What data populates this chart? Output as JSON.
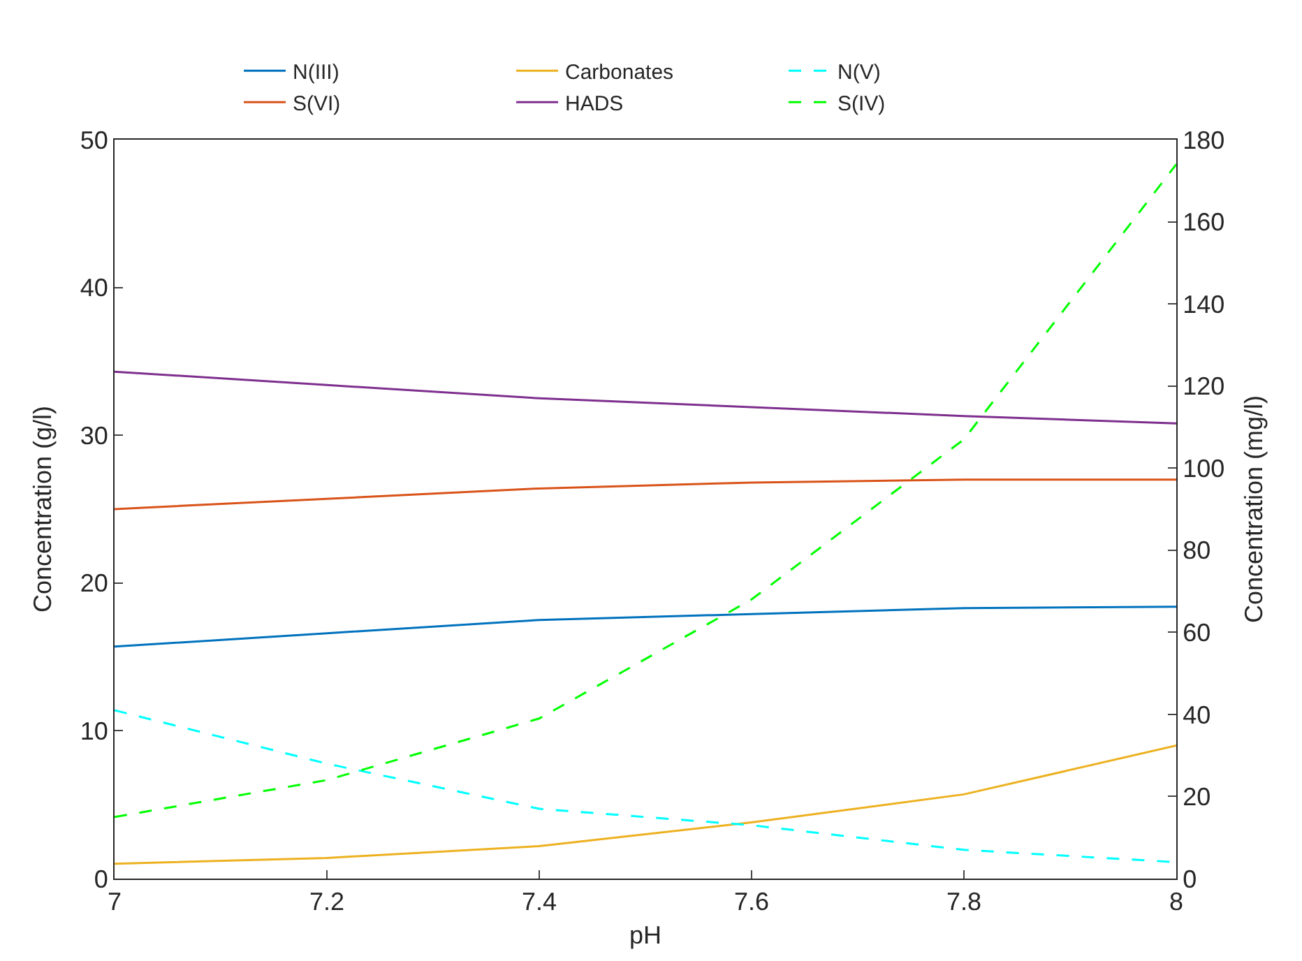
{
  "chart_data": {
    "type": "line",
    "xlabel": "pH",
    "ylabel": "Concentration (g/l)",
    "y2label": "Concentration (mg/l)",
    "x": [
      7,
      7.2,
      7.4,
      7.6,
      7.8,
      8
    ],
    "xlim": [
      7,
      8
    ],
    "xticks": [
      7,
      7.2,
      7.4,
      7.6,
      7.8,
      8
    ],
    "ylim": [
      0,
      50
    ],
    "yticks": [
      0,
      10,
      20,
      30,
      40,
      50
    ],
    "y2lim": [
      0,
      180
    ],
    "y2ticks": [
      0,
      20,
      40,
      60,
      80,
      100,
      120,
      140,
      160,
      180
    ],
    "legend": "top",
    "marker": "none",
    "series": [
      {
        "name": "N(III)",
        "color": "#0072bd",
        "values": [
          15.7,
          16.6,
          17.5,
          17.9,
          18.3,
          18.4
        ],
        "line_style": "solid"
      },
      {
        "name": "S(VI)",
        "color": "#d95319",
        "values": [
          25.0,
          25.7,
          26.4,
          26.8,
          27.0,
          27.0
        ],
        "line_style": "solid"
      },
      {
        "name": "Carbonates",
        "color": "#edb120",
        "values": [
          1.0,
          1.4,
          2.2,
          3.8,
          5.7,
          9.0
        ],
        "line_style": "solid"
      },
      {
        "name": "HADS",
        "color": "#7e2f8e",
        "values": [
          34.3,
          33.4,
          32.5,
          31.9,
          31.3,
          30.8
        ],
        "line_style": "solid"
      },
      {
        "name": "N(V)",
        "color": "#00ffff",
        "values": [
          41,
          28,
          17,
          13,
          7,
          4
        ],
        "line_style": "dashed",
        "axis": "y2"
      },
      {
        "name": "S(IV)",
        "color": "#00ff00",
        "values": [
          15,
          24,
          39,
          68,
          107,
          174
        ],
        "line_style": "dashed",
        "axis": "y2"
      }
    ]
  }
}
